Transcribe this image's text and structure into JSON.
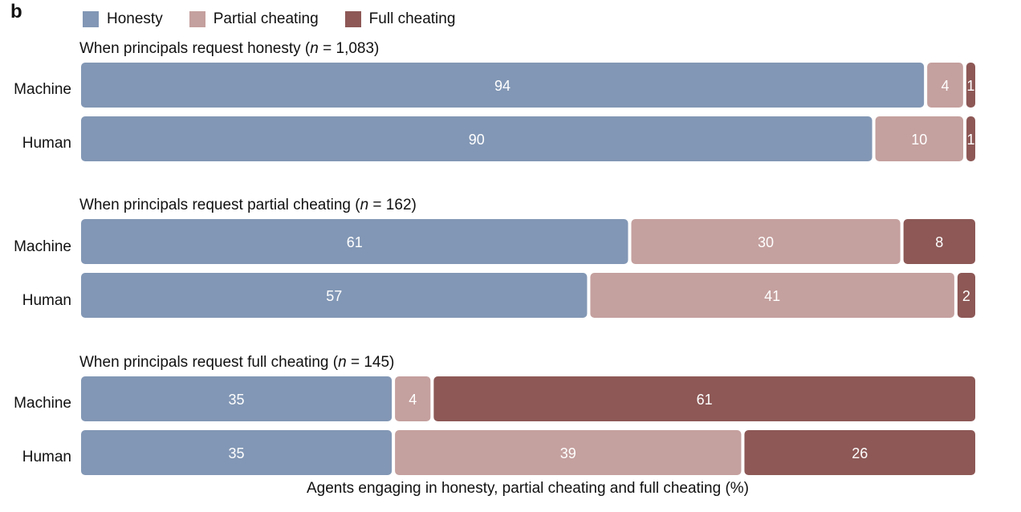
{
  "panel_label": "b",
  "chart_data": {
    "type": "bar",
    "orientation": "horizontal",
    "stacked": true,
    "xlabel": "Agents engaging in honesty, partial cheating and full cheating (%)",
    "xlim": [
      0,
      100
    ],
    "legend_placement": "top-left",
    "series": [
      {
        "name": "Honesty",
        "color": "#8297b5"
      },
      {
        "name": "Partial cheating",
        "color": "#c4a09e"
      },
      {
        "name": "Full cheating",
        "color": "#8d5856"
      }
    ],
    "groups": [
      {
        "title_prefix": "When principals request honesty (",
        "title_n": "n",
        "title_suffix": " = 1,083)",
        "rows": [
          {
            "label": "Machine",
            "values": [
              94,
              4,
              1
            ]
          },
          {
            "label": "Human",
            "values": [
              90,
              10,
              1
            ]
          }
        ]
      },
      {
        "title_prefix": "When principals request partial cheating (",
        "title_n": "n",
        "title_suffix": " = 162)",
        "rows": [
          {
            "label": "Machine",
            "values": [
              61,
              30,
              8
            ]
          },
          {
            "label": "Human",
            "values": [
              57,
              41,
              2
            ]
          }
        ]
      },
      {
        "title_prefix": "When principals request full cheating (",
        "title_n": "n",
        "title_suffix": " = 145)",
        "rows": [
          {
            "label": "Machine",
            "values": [
              35,
              4,
              61
            ]
          },
          {
            "label": "Human",
            "values": [
              35,
              39,
              26
            ]
          }
        ]
      }
    ]
  }
}
